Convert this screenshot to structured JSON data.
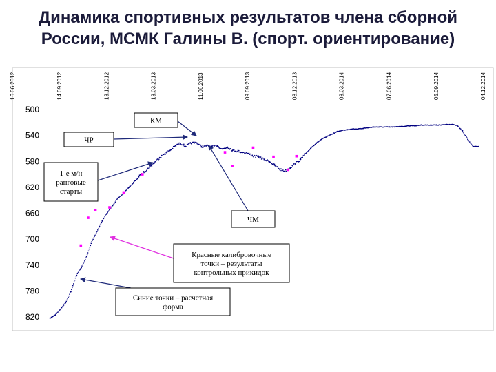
{
  "page": {
    "title_line1": "Динамика спортивных результатов члена сборной",
    "title_line2": "России, МСМК Галины В. (спорт. ориентирование)"
  },
  "chart_data": {
    "type": "scatter",
    "title": "Динамика спортивных результатов члена сборной России, МСМК Галины В. (спорт. ориентирование)",
    "x_ticks": [
      "16.06.2012",
      "14.09.2012",
      "13.12.2012",
      "13.03.2013",
      "11.06.2013",
      "09.09.2013",
      "08.12.2013",
      "08.03.2014",
      "07.06.2014",
      "05.09.2014",
      "04.12.2014"
    ],
    "y_ticks": [
      500,
      540,
      580,
      620,
      660,
      700,
      740,
      780,
      820
    ],
    "ylim": [
      500,
      820
    ],
    "y_inverted": true,
    "grid": false,
    "series": [
      {
        "color": "#000080",
        "style": "dense-points",
        "x": [
          "2012-08-27",
          "2012-09-06",
          "2012-09-16",
          "2012-09-26",
          "2012-10-06",
          "2012-10-16",
          "2012-10-26",
          "2012-11-05",
          "2012-11-15",
          "2012-11-25",
          "2012-12-05",
          "2012-12-15",
          "2012-12-25",
          "2013-01-04",
          "2013-01-14",
          "2013-01-24",
          "2013-02-03",
          "2013-02-13",
          "2013-02-23",
          "2013-03-05",
          "2013-03-15",
          "2013-03-25",
          "2013-04-04",
          "2013-04-14",
          "2013-04-24",
          "2013-05-04",
          "2013-05-14",
          "2013-05-24",
          "2013-06-03",
          "2013-06-13",
          "2013-06-23",
          "2013-07-03",
          "2013-07-13",
          "2013-07-23",
          "2013-08-02",
          "2013-08-12",
          "2013-08-22",
          "2013-09-01",
          "2013-09-11",
          "2013-09-21",
          "2013-10-01",
          "2013-10-11",
          "2013-10-21",
          "2013-10-31",
          "2013-11-10",
          "2013-11-20",
          "2013-11-30",
          "2013-12-10",
          "2013-12-20",
          "2013-12-30",
          "2014-01-09",
          "2014-01-19",
          "2014-01-29",
          "2014-02-08",
          "2014-02-18",
          "2014-02-28",
          "2014-03-10",
          "2014-03-20",
          "2014-03-30",
          "2014-04-09",
          "2014-04-19",
          "2014-04-29",
          "2014-05-09",
          "2014-05-19",
          "2014-05-29",
          "2014-06-08",
          "2014-06-18",
          "2014-06-28",
          "2014-07-08",
          "2014-07-18",
          "2014-07-28",
          "2014-08-07",
          "2014-08-17",
          "2014-08-27",
          "2014-09-06",
          "2014-09-16",
          "2014-09-26",
          "2014-10-06",
          "2014-10-16",
          "2014-10-26",
          "2014-11-05",
          "2014-11-15",
          "2014-11-25"
        ],
        "values": [
          822,
          817,
          808,
          798,
          781,
          757,
          744,
          727,
          704,
          688,
          672,
          659,
          648,
          637,
          630,
          621,
          613,
          604,
          596,
          590,
          582,
          574,
          568,
          563,
          556,
          552,
          557,
          552,
          551,
          557,
          556,
          557,
          556,
          561,
          558,
          563,
          564,
          566,
          568,
          572,
          573,
          577,
          580,
          586,
          592,
          595,
          590,
          583,
          577,
          568,
          559,
          552,
          546,
          542,
          538,
          534,
          532,
          531,
          530,
          530,
          529,
          528,
          527,
          527,
          527,
          527,
          527,
          526,
          526,
          525,
          525,
          524,
          524,
          524,
          524,
          524,
          523,
          523,
          525,
          533,
          546,
          557,
          557
        ]
      },
      {
        "color": "#ff00ff",
        "style": "points",
        "x": [
          "2012-10-25",
          "2012-11-08",
          "2012-11-22",
          "2012-12-19",
          "2013-01-15",
          "2013-02-20",
          "2013-07-28",
          "2013-08-11",
          "2013-09-20",
          "2013-10-29",
          "2013-11-26",
          "2013-12-12"
        ],
        "values": [
          710,
          667,
          655,
          651,
          628,
          600,
          566,
          587,
          559,
          573,
          593,
          572
        ]
      }
    ],
    "annotations": [
      {
        "text": "КМ",
        "lines": [
          "КМ"
        ]
      },
      {
        "text": "ЧР",
        "lines": [
          "ЧР"
        ]
      },
      {
        "text": "1-е м/н ранговые старты",
        "lines": [
          "1-е м/н",
          "ранговые",
          "старты"
        ]
      },
      {
        "text": "ЧМ",
        "lines": [
          "ЧМ"
        ]
      },
      {
        "text": "Красные калибровочные точки – результаты контрольных прикидок",
        "lines": [
          "Красные калибровочные",
          "точки – результаты",
          "контрольных прикидок"
        ]
      },
      {
        "text": "Синие точки – расчетная форма",
        "lines": [
          "Синие точки – расчетная",
          "форма"
        ]
      }
    ]
  }
}
